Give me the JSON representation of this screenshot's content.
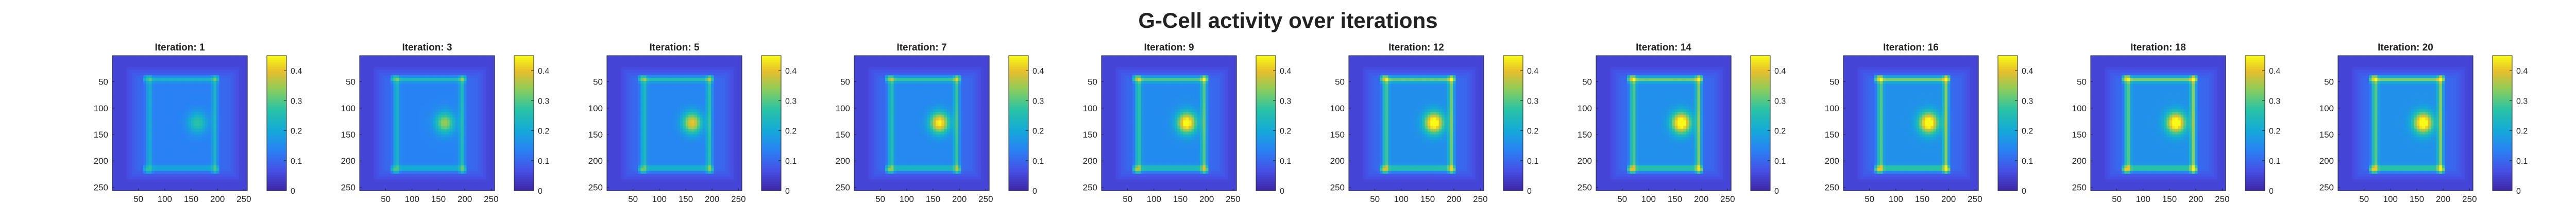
{
  "figure": {
    "title": "G-Cell activity over iterations"
  },
  "chart_data": {
    "type": "heatmap",
    "colormap": "parula",
    "xlim": [
      1,
      256
    ],
    "ylim": [
      1,
      256
    ],
    "y_direction": "reversed (image rows, top = 1)",
    "xticks": [
      50,
      100,
      150,
      200,
      250
    ],
    "yticks": [
      50,
      100,
      150,
      200,
      250
    ],
    "colorbar_ticks": [
      0,
      0.1,
      0.2,
      0.3,
      0.4
    ],
    "colorbar_lim": [
      0,
      0.45
    ],
    "grid": false,
    "colors": {
      "low": "#3e26a8",
      "mid": "#1fa8db",
      "high": "#f9fb15"
    },
    "panels": [
      {
        "title": "Iteration: 1",
        "iteration": 1,
        "peak_activity": 0.2,
        "frame_activity": 0.15
      },
      {
        "title": "Iteration: 3",
        "iteration": 3,
        "peak_activity": 0.28,
        "frame_activity": 0.17
      },
      {
        "title": "Iteration: 5",
        "iteration": 5,
        "peak_activity": 0.34,
        "frame_activity": 0.19
      },
      {
        "title": "Iteration: 7",
        "iteration": 7,
        "peak_activity": 0.39,
        "frame_activity": 0.21
      },
      {
        "title": "Iteration: 9",
        "iteration": 9,
        "peak_activity": 0.42,
        "frame_activity": 0.23
      },
      {
        "title": "Iteration: 12",
        "iteration": 12,
        "peak_activity": 0.44,
        "frame_activity": 0.25
      },
      {
        "title": "Iteration: 14",
        "iteration": 14,
        "peak_activity": 0.45,
        "frame_activity": 0.26
      },
      {
        "title": "Iteration: 16",
        "iteration": 16,
        "peak_activity": 0.45,
        "frame_activity": 0.27
      },
      {
        "title": "Iteration: 18",
        "iteration": 18,
        "peak_activity": 0.45,
        "frame_activity": 0.27
      },
      {
        "title": "Iteration: 20",
        "iteration": 20,
        "peak_activity": 0.45,
        "frame_activity": 0.27
      }
    ]
  }
}
